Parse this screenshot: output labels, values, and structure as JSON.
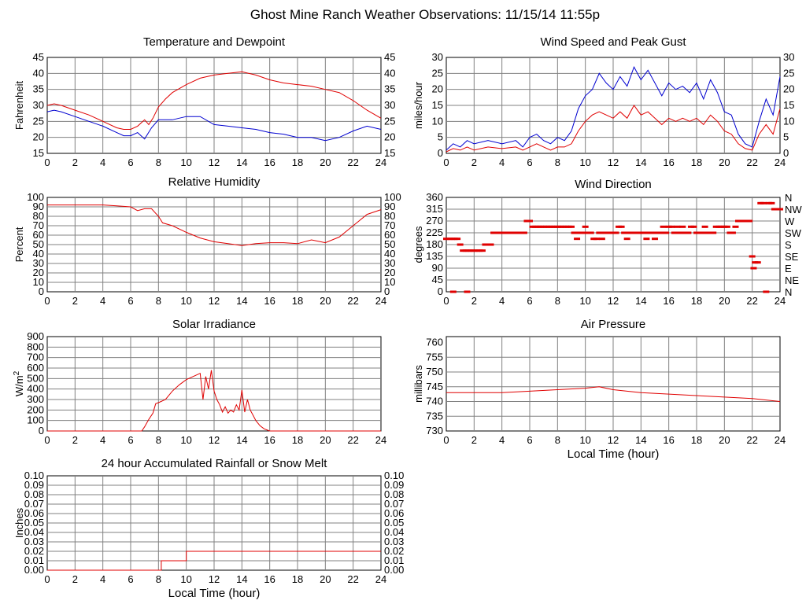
{
  "page_title": "Ghost Mine Ranch Weather Observations: 11/15/14 11:55p",
  "colors": {
    "temperature": "#e00000",
    "dewpoint": "#0000d0",
    "grid": "#808080",
    "red": "#e00000",
    "blue": "#0000d0"
  },
  "chart_data": [
    {
      "id": "temp",
      "type": "line",
      "title": "Temperature and Dewpoint",
      "ylabel": "Fahrenheit",
      "xlabel": "",
      "xlim": [
        0,
        24
      ],
      "ylim": [
        15,
        45
      ],
      "xticks": [
        0,
        2,
        4,
        6,
        8,
        10,
        12,
        14,
        16,
        18,
        20,
        22,
        24
      ],
      "yticks": [
        15,
        20,
        25,
        30,
        35,
        40,
        45
      ],
      "right_axis": true,
      "grid": true,
      "series": [
        {
          "color": "#e00000",
          "x": [
            0,
            0.5,
            1,
            2,
            3,
            4,
            5,
            5.5,
            6,
            6.5,
            7,
            7.3,
            7.6,
            8,
            8.5,
            9,
            10,
            11,
            12,
            13,
            14,
            15,
            16,
            17,
            18,
            19,
            20,
            21,
            22,
            23,
            24
          ],
          "y": [
            30,
            30.5,
            30,
            28.5,
            27,
            25,
            23,
            22.5,
            22.5,
            23.5,
            25.5,
            24,
            26,
            29.5,
            32,
            34,
            36.5,
            38.5,
            39.5,
            40,
            40.5,
            39.5,
            38,
            37,
            36.5,
            36,
            35,
            34,
            31.5,
            28.5,
            26
          ]
        },
        {
          "color": "#0000d0",
          "x": [
            0,
            0.5,
            1,
            2,
            3,
            4,
            5,
            5.5,
            6,
            6.5,
            7,
            7.5,
            8,
            9,
            10,
            11,
            12,
            13,
            14,
            15,
            16,
            17,
            18,
            19,
            20,
            21,
            22,
            23,
            24
          ],
          "y": [
            28,
            28.5,
            28,
            26.5,
            25,
            23.5,
            21.5,
            20.5,
            20.5,
            21.5,
            19.5,
            23,
            25.5,
            25.5,
            26.5,
            26.5,
            24,
            23.5,
            23,
            22.5,
            21.5,
            21,
            20,
            20,
            19,
            20,
            22,
            23.5,
            22.5
          ]
        }
      ]
    },
    {
      "id": "wind",
      "type": "line",
      "title": "Wind Speed and Peak Gust",
      "ylabel": "miles/hour",
      "xlabel": "",
      "xlim": [
        0,
        24
      ],
      "ylim": [
        0,
        30
      ],
      "xticks": [
        0,
        2,
        4,
        6,
        8,
        10,
        12,
        14,
        16,
        18,
        20,
        22,
        24
      ],
      "yticks": [
        0,
        5,
        10,
        15,
        20,
        25,
        30
      ],
      "right_axis": true,
      "grid": true,
      "series": [
        {
          "color": "#0000d0",
          "x": [
            0,
            0.5,
            1,
            1.5,
            2,
            3,
            4,
            5,
            5.5,
            6,
            6.5,
            7,
            7.5,
            8,
            8.5,
            9,
            9.5,
            10,
            10.5,
            11,
            11.5,
            12,
            12.5,
            13,
            13.5,
            14,
            14.5,
            15,
            15.5,
            16,
            16.5,
            17,
            17.5,
            18,
            18.5,
            19,
            19.5,
            20,
            20.5,
            21,
            21.5,
            22,
            22.5,
            23,
            23.5,
            24
          ],
          "y": [
            1,
            3,
            2,
            4,
            3,
            4,
            3,
            4,
            2,
            5,
            6,
            4,
            3,
            5,
            4,
            7,
            14,
            18,
            20,
            25,
            22,
            20,
            24,
            21,
            27,
            23,
            26,
            22,
            18,
            22,
            20,
            21,
            19,
            22,
            17,
            23,
            19,
            13,
            12,
            6,
            3,
            2,
            10,
            17,
            12,
            24
          ]
        },
        {
          "color": "#e00000",
          "x": [
            0,
            0.5,
            1,
            1.5,
            2,
            3,
            4,
            5,
            5.5,
            6,
            6.5,
            7,
            7.5,
            8,
            8.5,
            9,
            9.5,
            10,
            10.5,
            11,
            11.5,
            12,
            12.5,
            13,
            13.5,
            14,
            14.5,
            15,
            15.5,
            16,
            16.5,
            17,
            17.5,
            18,
            18.5,
            19,
            19.5,
            20,
            20.5,
            21,
            21.5,
            22,
            22.5,
            23,
            23.5,
            24
          ],
          "y": [
            0.5,
            1.5,
            1,
            2,
            1,
            2,
            1.5,
            2,
            1,
            2,
            3,
            2,
            1,
            2,
            2,
            3,
            7,
            10,
            12,
            13,
            12,
            11,
            13,
            11,
            15,
            12,
            13,
            11,
            9,
            11,
            10,
            11,
            10,
            11,
            9,
            12,
            10,
            7,
            6,
            3,
            1.5,
            1,
            6,
            9,
            6,
            14
          ]
        }
      ]
    },
    {
      "id": "rh",
      "type": "line",
      "title": "Relative Humidity",
      "ylabel": "Percent",
      "xlabel": "",
      "xlim": [
        0,
        24
      ],
      "ylim": [
        0,
        100
      ],
      "xticks": [
        0,
        2,
        4,
        6,
        8,
        10,
        12,
        14,
        16,
        18,
        20,
        22,
        24
      ],
      "yticks": [
        0,
        10,
        20,
        30,
        40,
        50,
        60,
        70,
        80,
        90,
        100
      ],
      "right_axis": true,
      "grid": true,
      "series": [
        {
          "color": "#e00000",
          "x": [
            0,
            1,
            2,
            3,
            4,
            5,
            6,
            6.5,
            7,
            7.5,
            8,
            8.3,
            9,
            10,
            11,
            12,
            13,
            14,
            15,
            16,
            17,
            18,
            19,
            20,
            21,
            22,
            23,
            24
          ],
          "y": [
            92,
            92,
            92,
            92,
            92,
            91,
            90,
            86,
            88,
            88,
            80,
            73,
            70,
            63,
            57,
            53,
            51,
            49,
            51,
            52,
            52,
            51,
            55,
            52,
            58,
            70,
            82,
            87
          ]
        }
      ]
    },
    {
      "id": "winddir",
      "type": "scatter",
      "title": "Wind Direction",
      "ylabel": "degrees",
      "xlabel": "",
      "xlim": [
        0,
        24
      ],
      "ylim": [
        0,
        360
      ],
      "xticks": [
        0,
        2,
        4,
        6,
        8,
        10,
        12,
        14,
        16,
        18,
        20,
        22,
        24
      ],
      "yticks": [
        0,
        45,
        90,
        135,
        180,
        225,
        270,
        315,
        360
      ],
      "right_ticklabels": [
        "N",
        "NE",
        "E",
        "SE",
        "S",
        "SW",
        "W",
        "NW",
        "N"
      ],
      "grid": true,
      "series": [
        {
          "color": "#e00000",
          "x": [
            0,
            0.2,
            0.4,
            0.5,
            0.6,
            0.8,
            1,
            1.2,
            1.4,
            1.5,
            1.6,
            1.8,
            2,
            2.2,
            2.4,
            2.6,
            2.8,
            3,
            3.2,
            3.4,
            3.6,
            3.8,
            4,
            4.2,
            4.4,
            4.6,
            4.8,
            5,
            5.2,
            5.4,
            5.6,
            5.8,
            6,
            6.2,
            6.4,
            6.6,
            6.8,
            7,
            7.2,
            7.4,
            7.6,
            7.8,
            8,
            8.2,
            8.4,
            8.6,
            8.8,
            9,
            9.2,
            9.4,
            9.6,
            9.8,
            10,
            10.2,
            10.4,
            10.6,
            10.8,
            11,
            11.2,
            11.4,
            11.6,
            11.8,
            12,
            12.2,
            12.4,
            12.6,
            12.8,
            13,
            13.2,
            13.4,
            13.6,
            13.8,
            14,
            14.2,
            14.4,
            14.6,
            14.8,
            15,
            15.2,
            15.4,
            15.6,
            15.8,
            16,
            16.2,
            16.4,
            16.6,
            16.8,
            17,
            17.2,
            17.4,
            17.6,
            17.8,
            18,
            18.2,
            18.4,
            18.6,
            18.8,
            19,
            19.2,
            19.4,
            19.6,
            19.8,
            20,
            20.2,
            20.4,
            20.6,
            20.8,
            21,
            21.2,
            21.4,
            21.6,
            21.8,
            22,
            22.1,
            22.2,
            22.4,
            22.6,
            22.8,
            23,
            23.2,
            23.4,
            23.6,
            23.8,
            24
          ],
          "y": [
            202,
            202,
            202,
            0,
            202,
            202,
            180,
            157,
            157,
            0,
            157,
            157,
            157,
            157,
            157,
            157,
            180,
            180,
            180,
            225,
            225,
            225,
            225,
            225,
            225,
            225,
            225,
            225,
            225,
            225,
            225,
            270,
            270,
            248,
            248,
            248,
            248,
            248,
            248,
            248,
            248,
            248,
            248,
            248,
            248,
            248,
            248,
            248,
            225,
            202,
            225,
            225,
            248,
            225,
            225,
            202,
            202,
            225,
            202,
            225,
            225,
            225,
            225,
            225,
            248,
            248,
            225,
            202,
            225,
            225,
            225,
            225,
            225,
            225,
            202,
            225,
            225,
            202,
            225,
            225,
            248,
            225,
            248,
            248,
            225,
            248,
            225,
            248,
            225,
            225,
            248,
            248,
            225,
            225,
            225,
            248,
            225,
            225,
            225,
            248,
            248,
            248,
            248,
            248,
            225,
            225,
            248,
            270,
            270,
            270,
            270,
            270,
            135,
            90,
            112,
            112,
            338,
            338,
            0,
            338,
            338,
            315,
            315,
            315
          ]
        }
      ]
    },
    {
      "id": "solar",
      "type": "line",
      "title": "Solar Irradiance",
      "ylabel": "W/m2",
      "xlabel": "",
      "xlim": [
        0,
        24
      ],
      "ylim": [
        0,
        900
      ],
      "xticks": [
        0,
        2,
        4,
        6,
        8,
        10,
        12,
        14,
        16,
        18,
        20,
        22,
        24
      ],
      "yticks": [
        0,
        100,
        200,
        300,
        400,
        500,
        600,
        700,
        800,
        900
      ],
      "right_axis": false,
      "grid": true,
      "series": [
        {
          "color": "#e00000",
          "x": [
            0,
            1,
            2,
            3,
            4,
            5,
            6,
            6.5,
            6.8,
            7,
            7.3,
            7.6,
            7.8,
            8,
            8.5,
            9,
            9.5,
            10,
            10.5,
            11,
            11.2,
            11.4,
            11.6,
            11.8,
            12,
            12.2,
            12.4,
            12.6,
            12.8,
            13,
            13.2,
            13.4,
            13.6,
            13.8,
            14,
            14.2,
            14.4,
            14.6,
            14.8,
            15,
            15.3,
            15.6,
            16,
            16.5,
            17,
            18,
            19,
            20,
            21,
            22,
            23,
            24
          ],
          "y": [
            0,
            0,
            0,
            0,
            0,
            0,
            0,
            0,
            0,
            40,
            110,
            170,
            260,
            270,
            300,
            380,
            440,
            490,
            520,
            550,
            300,
            520,
            400,
            580,
            380,
            300,
            250,
            180,
            230,
            170,
            200,
            180,
            250,
            200,
            390,
            180,
            300,
            200,
            150,
            100,
            50,
            20,
            0,
            0,
            0,
            0,
            0,
            0,
            0,
            0,
            0,
            0
          ]
        }
      ]
    },
    {
      "id": "pressure",
      "type": "line",
      "title": "Air Pressure",
      "ylabel": "millibars",
      "xlabel": "Local Time (hour)",
      "xlim": [
        0,
        24
      ],
      "ylim": [
        730,
        762
      ],
      "xticks": [
        0,
        2,
        4,
        6,
        8,
        10,
        12,
        14,
        16,
        18,
        20,
        22,
        24
      ],
      "yticks": [
        730,
        735,
        740,
        745,
        750,
        755,
        760
      ],
      "right_axis": false,
      "grid": true,
      "series": [
        {
          "color": "#e00000",
          "x": [
            0,
            2,
            4,
            6,
            8,
            10,
            11,
            12,
            14,
            16,
            18,
            20,
            22,
            24
          ],
          "y": [
            743,
            743,
            743,
            743.5,
            744,
            744.5,
            745,
            744,
            743,
            742.5,
            742,
            741.5,
            741,
            740
          ]
        }
      ]
    },
    {
      "id": "rain",
      "type": "line",
      "title": "24 hour Accumulated Rainfall or Snow Melt",
      "ylabel": "Inches",
      "xlabel": "Local Time (hour)",
      "xlim": [
        0,
        24
      ],
      "ylim": [
        0,
        0.1
      ],
      "xticks": [
        0,
        2,
        4,
        6,
        8,
        10,
        12,
        14,
        16,
        18,
        20,
        22,
        24
      ],
      "yticks": [
        "0.00",
        "0.01",
        "0.02",
        "0.03",
        "0.04",
        "0.05",
        "0.06",
        "0.07",
        "0.08",
        "0.09",
        "0.10"
      ],
      "right_axis": true,
      "grid": true,
      "series": [
        {
          "color": "#e00000",
          "x": [
            0,
            8.2,
            8.2,
            10,
            10,
            24
          ],
          "y": [
            0,
            0,
            0.01,
            0.01,
            0.02,
            0.02
          ]
        }
      ]
    }
  ]
}
